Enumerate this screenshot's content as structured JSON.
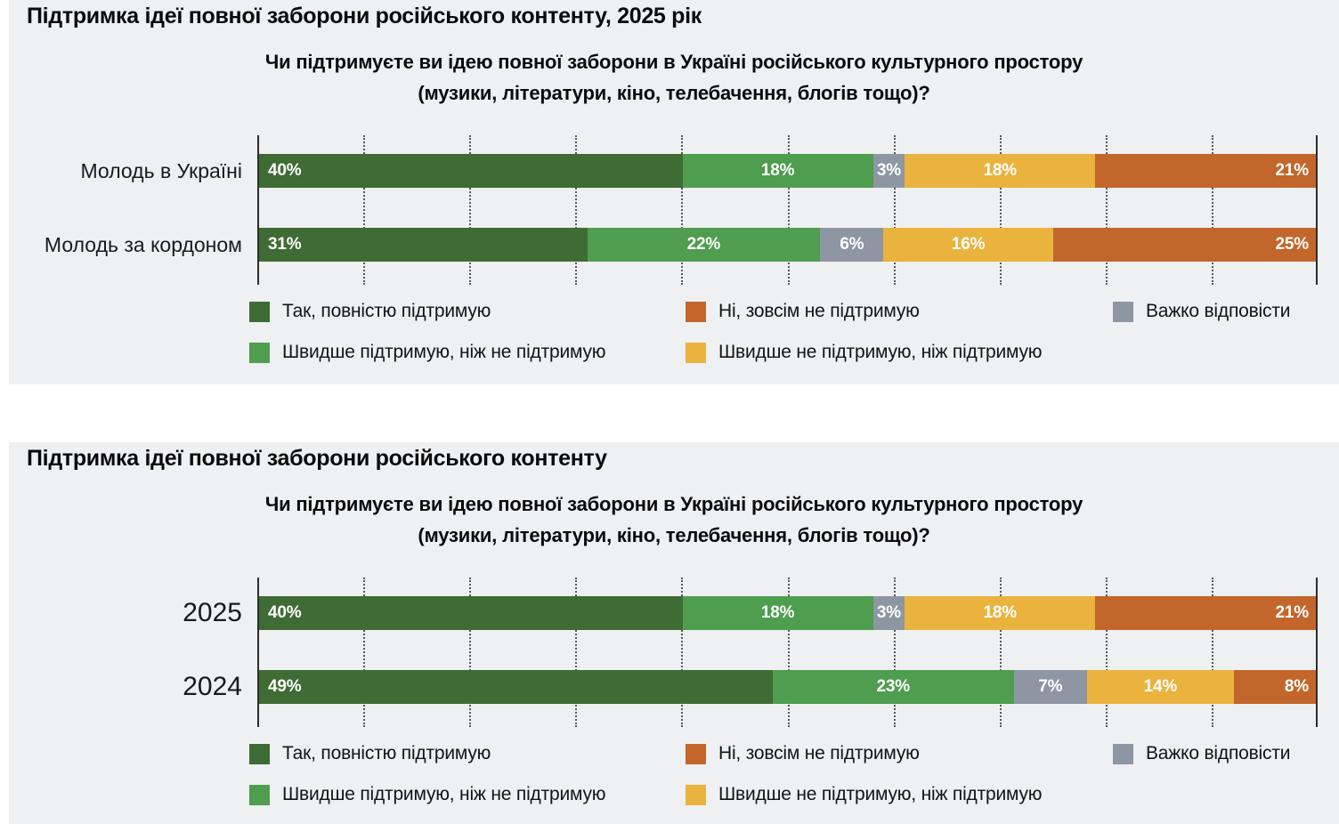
{
  "colors": {
    "panel_bg": "#eff0f2",
    "axis_line": "#2d2d2d",
    "grid_line": "#595959",
    "title_text": "#0b0b0b",
    "category_text": "#1a1a1a",
    "value_text": "#ffffff"
  },
  "series_colors": {
    "full_support": "#3f6b34",
    "rather_support": "#4f9d4e",
    "hard_to_say": "#8e96a3",
    "rather_not_support": "#eab33e",
    "no_support": "#c3662b"
  },
  "legend_columns": [
    [
      {
        "key": "full_support",
        "label": "Так, повністю підтримую"
      },
      {
        "key": "rather_support",
        "label": "Швидше підтримую, ніж не підтримую"
      }
    ],
    [
      {
        "key": "no_support",
        "label": "Ні, зовсім не підтримую"
      },
      {
        "key": "rather_not_support",
        "label": "Швидше не підтримую, ніж підтримую"
      }
    ],
    [
      {
        "key": "hard_to_say",
        "label": "Важко відповісти"
      }
    ]
  ],
  "chart_data": [
    {
      "type": "bar",
      "variant": "horizontal-stacked",
      "title": "Підтримка ідеї повної заборони російського контенту, 2025 рік",
      "subtitle_lines": [
        "Чи підтримуєте ви ідею повної заборони в Україні російського культурного простору",
        "(музики, літератури, кіно, телебачення, блогів тощо)?"
      ],
      "categories": [
        "Молодь в Україні",
        "Молодь за кордоном"
      ],
      "series": [
        {
          "key": "full_support",
          "name": "Так, повністю підтримую",
          "values": [
            40,
            31
          ]
        },
        {
          "key": "rather_support",
          "name": "Швидше підтримую, ніж не підтримую",
          "values": [
            18,
            22
          ]
        },
        {
          "key": "hard_to_say",
          "name": "Важко відповісти",
          "values": [
            3,
            6
          ]
        },
        {
          "key": "rather_not_support",
          "name": "Швидше не підтримую, ніж підтримую",
          "values": [
            18,
            16
          ]
        },
        {
          "key": "no_support",
          "name": "Ні, зовсім не підтримую",
          "values": [
            21,
            25
          ]
        }
      ],
      "value_suffix": "%",
      "xlim": [
        0,
        100
      ],
      "gridlines_at": [
        10,
        20,
        30,
        40,
        50,
        60,
        70,
        80,
        90
      ],
      "grid_style": "dotted-vertical",
      "legend_position": "bottom"
    },
    {
      "type": "bar",
      "variant": "horizontal-stacked",
      "title": "Підтримка ідеї повної заборони російського контенту",
      "subtitle_lines": [
        "Чи підтримуєте ви ідею повної заборони в Україні російського культурного простору",
        "(музики, літератури, кіно, телебачення, блогів тощо)?"
      ],
      "categories": [
        "2025",
        "2024"
      ],
      "series": [
        {
          "key": "full_support",
          "name": "Так, повністю підтримую",
          "values": [
            40,
            49
          ]
        },
        {
          "key": "rather_support",
          "name": "Швидше підтримую, ніж не підтримую",
          "values": [
            18,
            23
          ]
        },
        {
          "key": "hard_to_say",
          "name": "Важко відповісти",
          "values": [
            3,
            7
          ]
        },
        {
          "key": "rather_not_support",
          "name": "Швидше не підтримую, ніж підтримую",
          "values": [
            18,
            14
          ]
        },
        {
          "key": "no_support",
          "name": "Ні, зовсім не підтримую",
          "values": [
            21,
            8
          ]
        }
      ],
      "value_suffix": "%",
      "xlim": [
        0,
        100
      ],
      "gridlines_at": [
        10,
        20,
        30,
        40,
        50,
        60,
        70,
        80,
        90
      ],
      "grid_style": "dotted-vertical",
      "legend_position": "bottom"
    }
  ]
}
